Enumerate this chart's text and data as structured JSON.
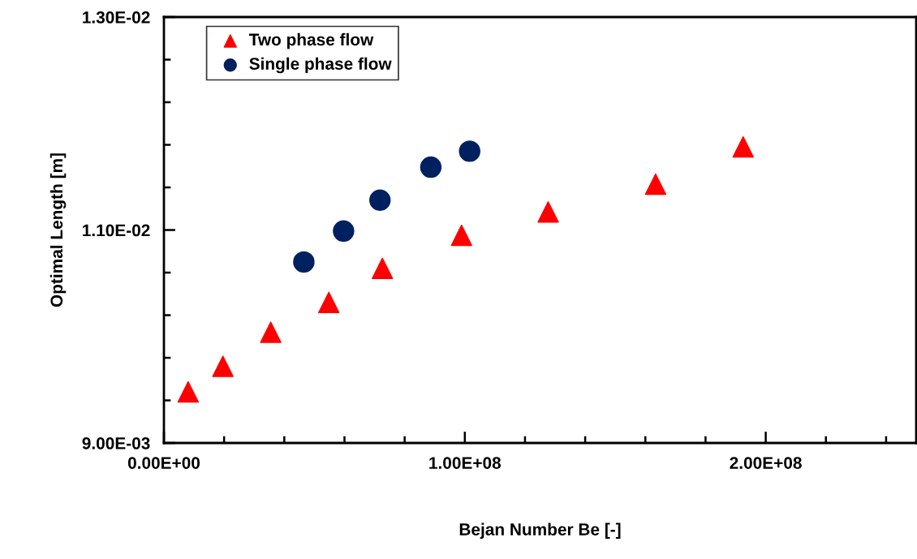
{
  "chart_data": {
    "type": "scatter",
    "xlabel": "Bejan Number Be [-]",
    "ylabel": "Optimal Length [m]",
    "xlim": [
      0,
      250000000
    ],
    "ylim": [
      0.009,
      0.013
    ],
    "xticks": [
      {
        "value": 0,
        "label": "0.00E+00"
      },
      {
        "value": 20000000,
        "label": null
      },
      {
        "value": 40000000,
        "label": null
      },
      {
        "value": 60000000,
        "label": null
      },
      {
        "value": 80000000,
        "label": null
      },
      {
        "value": 100000000,
        "label": "1.00E+08"
      },
      {
        "value": 120000000,
        "label": null
      },
      {
        "value": 140000000,
        "label": null
      },
      {
        "value": 160000000,
        "label": null
      },
      {
        "value": 180000000,
        "label": null
      },
      {
        "value": 200000000,
        "label": "2.00E+08"
      },
      {
        "value": 220000000,
        "label": null
      },
      {
        "value": 240000000,
        "label": null
      }
    ],
    "yticks": [
      {
        "value": 0.009,
        "label": "9.00E-03"
      },
      {
        "value": 0.0094,
        "label": null
      },
      {
        "value": 0.0098,
        "label": null
      },
      {
        "value": 0.0102,
        "label": null
      },
      {
        "value": 0.0106,
        "label": null
      },
      {
        "value": 0.011,
        "label": "1.10E-02"
      },
      {
        "value": 0.0114,
        "label": null
      },
      {
        "value": 0.0118,
        "label": null
      },
      {
        "value": 0.0122,
        "label": null
      },
      {
        "value": 0.0126,
        "label": null
      },
      {
        "value": 0.013,
        "label": "1.30E-02"
      }
    ],
    "grid": false,
    "legend": "top left",
    "series": [
      {
        "name": "Two phase flow",
        "color": "#ff0000",
        "marker": "triangle",
        "x": [
          8060000,
          19600000,
          35500000,
          54800000,
          72600000,
          98900000,
          127700000,
          163400000,
          192500000
        ],
        "values": [
          0.00948,
          0.00972,
          0.01004,
          0.01032,
          0.01064,
          0.01095,
          0.01117,
          0.01143,
          0.01178
        ]
      },
      {
        "name": "Single phase flow",
        "color": "#002060",
        "marker": "circle",
        "x": [
          46500000,
          59700000,
          71800000,
          88700000,
          101600000
        ],
        "values": [
          0.0107,
          0.01099,
          0.01128,
          0.01159,
          0.01174
        ]
      }
    ]
  }
}
